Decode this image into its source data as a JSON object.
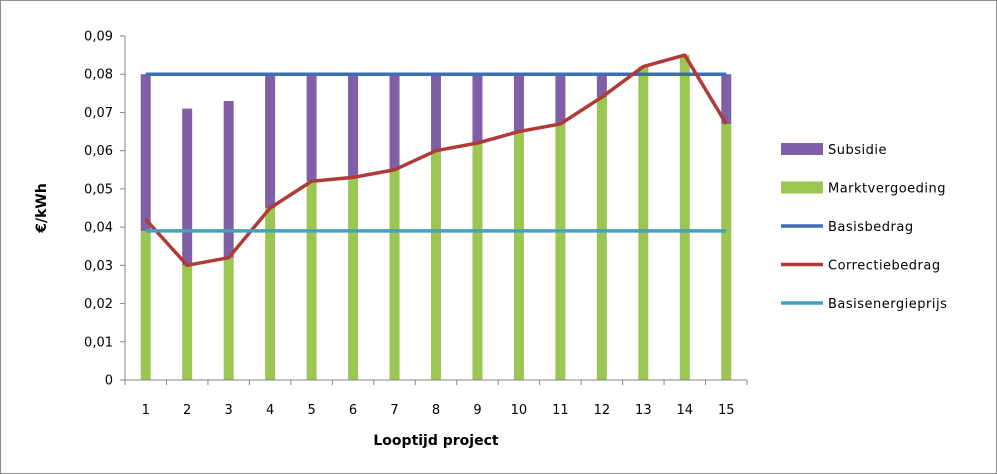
{
  "chart_data": {
    "type": "bar",
    "stacked": true,
    "xlabel": "Looptijd project",
    "ylabel": "€/kWh",
    "ylim": [
      0,
      0.09
    ],
    "yticks": [
      0,
      0.01,
      0.02,
      0.03,
      0.04,
      0.05,
      0.06,
      0.07,
      0.08,
      0.09
    ],
    "ytick_labels": [
      "0",
      "0,01",
      "0,02",
      "0,03",
      "0,04",
      "0,05",
      "0,06",
      "0,07",
      "0,08",
      "0,09"
    ],
    "categories": [
      "1",
      "2",
      "3",
      "4",
      "5",
      "6",
      "7",
      "8",
      "9",
      "10",
      "11",
      "12",
      "13",
      "14",
      "15"
    ],
    "grid": false,
    "legend_position": "right",
    "series": [
      {
        "name": "Subsidie",
        "kind": "bar",
        "color": "#7f5fa5",
        "values": [
          0.041,
          0.041,
          0.041,
          0.035,
          0.028,
          0.027,
          0.025,
          0.02,
          0.018,
          0.015,
          0.013,
          0.006,
          0.0,
          0.0,
          0.013
        ]
      },
      {
        "name": "Marktvergoeding",
        "kind": "bar",
        "color": "#9bc652",
        "values": [
          0.039,
          0.03,
          0.032,
          0.045,
          0.052,
          0.053,
          0.055,
          0.06,
          0.062,
          0.065,
          0.067,
          0.074,
          0.082,
          0.085,
          0.067
        ]
      },
      {
        "name": "Basisbedrag",
        "kind": "line",
        "color": "#3d6db5",
        "values": [
          0.08,
          0.08,
          0.08,
          0.08,
          0.08,
          0.08,
          0.08,
          0.08,
          0.08,
          0.08,
          0.08,
          0.08,
          0.08,
          0.08,
          0.08
        ]
      },
      {
        "name": "Correctiebedrag",
        "kind": "line",
        "color": "#b03a37",
        "values": [
          0.042,
          0.03,
          0.032,
          0.045,
          0.052,
          0.053,
          0.055,
          0.06,
          0.062,
          0.065,
          0.067,
          0.074,
          0.082,
          0.085,
          0.067
        ]
      },
      {
        "name": "Basisenergieprijs",
        "kind": "line",
        "color": "#45a1c1",
        "values": [
          0.039,
          0.039,
          0.039,
          0.039,
          0.039,
          0.039,
          0.039,
          0.039,
          0.039,
          0.039,
          0.039,
          0.039,
          0.039,
          0.039,
          0.039
        ]
      }
    ]
  }
}
